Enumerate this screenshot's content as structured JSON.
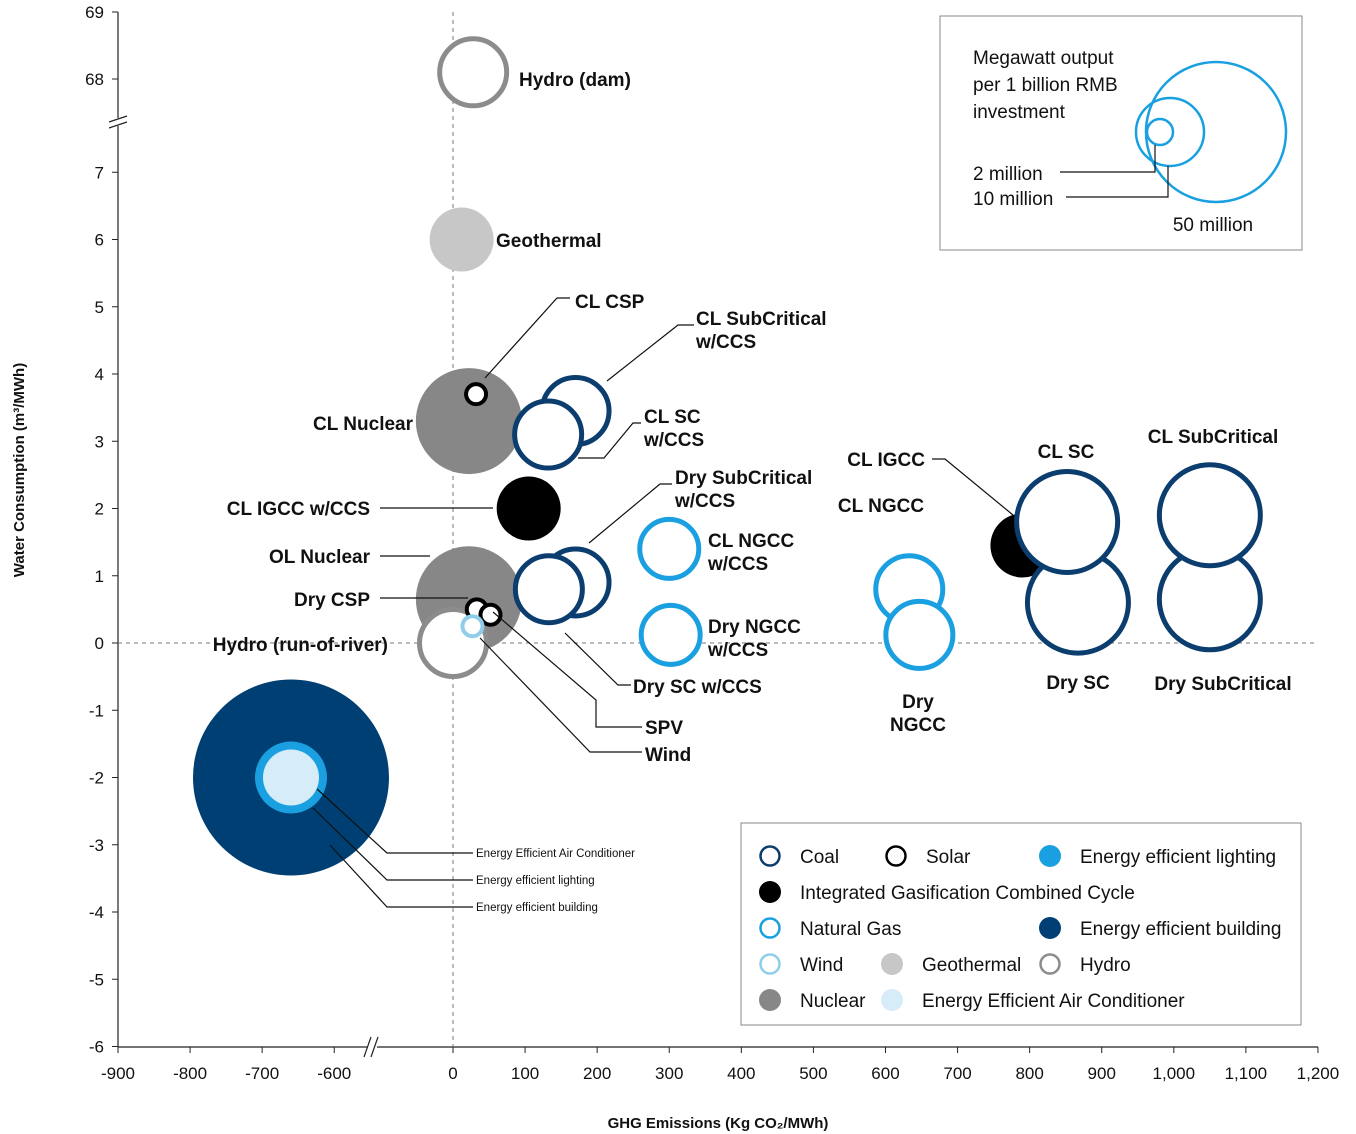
{
  "chart_data": {
    "type": "bubble",
    "title": "",
    "xlabel": "GHG Emissions (Kg CO₂/MWh)",
    "ylabel": "Water Consumption (m³/MWh)",
    "x_ticks": [
      "-900",
      "-800",
      "-700",
      "-600",
      "0",
      "100",
      "200",
      "300",
      "400",
      "500",
      "600",
      "700",
      "800",
      "900",
      "1,000",
      "1,100",
      "1,200"
    ],
    "y_ticks": [
      "-6",
      "-5",
      "-4",
      "-3",
      "-2",
      "-1",
      "0",
      "1",
      "2",
      "3",
      "4",
      "5",
      "6",
      "7",
      "68",
      "69"
    ],
    "x_axis_break": "between -550 and 0",
    "y_axis_break": "between 7.5 and 67.5",
    "colors": {
      "coal": "#0b3d6e",
      "solar": "#000000",
      "lighting": "#1aa0e0",
      "igcc": "#000000",
      "natural_gas": "#1aa0e0",
      "building": "#003f73",
      "wind": "#8fcdea",
      "geothermal": "#c7c7c7",
      "hydro": "#8c8c8c",
      "nuclear": "#878787",
      "air_conditioner": "#d6ecf8"
    },
    "points": [
      {
        "label": "Hydro (dam)",
        "category": "Hydro",
        "x": 28,
        "y": 68.1,
        "size": "medium"
      },
      {
        "label": "Geothermal",
        "category": "Geothermal",
        "x": 12,
        "y": 6.0,
        "size": "small"
      },
      {
        "label": "CL CSP",
        "category": "Solar",
        "x": 32,
        "y": 3.7,
        "size": "very small"
      },
      {
        "label": "CL SubCritical w/CCS",
        "category": "Coal",
        "x": 170,
        "y": 3.45,
        "size": "medium"
      },
      {
        "label": "CL Nuclear",
        "category": "Nuclear",
        "x": 22,
        "y": 3.3,
        "size": "large"
      },
      {
        "label": "CL SC w/CCS",
        "category": "Coal",
        "x": 132,
        "y": 3.1,
        "size": "medium"
      },
      {
        "label": "CL IGCC w/CCS",
        "category": "Integrated Gasification Combined Cycle",
        "x": 105,
        "y": 2.0,
        "size": "small"
      },
      {
        "label": "Dry SubCritical w/CCS",
        "category": "Coal",
        "x": 170,
        "y": 0.9,
        "size": "medium"
      },
      {
        "label": "OL Nuclear",
        "category": "Nuclear",
        "x": 22,
        "y": 0.65,
        "size": "large"
      },
      {
        "label": "Dry SC w/CCS",
        "category": "Coal",
        "x": 133,
        "y": 0.8,
        "size": "medium"
      },
      {
        "label": "Dry CSP",
        "category": "Solar",
        "x": 33,
        "y": 0.5,
        "size": "very small"
      },
      {
        "label": "SPV",
        "category": "Solar",
        "x": 52,
        "y": 0.42,
        "size": "very small"
      },
      {
        "label": "Wind",
        "category": "Wind",
        "x": 27,
        "y": 0.25,
        "size": "very small"
      },
      {
        "label": "Hydro (run-of-river)",
        "category": "Hydro",
        "x": 0,
        "y": 0.0,
        "size": "medium"
      },
      {
        "label": "CL NGCC w/CCS",
        "category": "Natural Gas",
        "x": 300,
        "y": 1.4,
        "size": "small"
      },
      {
        "label": "Dry NGCC w/CCS",
        "category": "Natural Gas",
        "x": 302,
        "y": 0.12,
        "size": "small"
      },
      {
        "label": "CL NGCC",
        "category": "Natural Gas",
        "x": 633,
        "y": 0.8,
        "size": "medium"
      },
      {
        "label": "Dry NGCC",
        "category": "Natural Gas",
        "x": 647,
        "y": 0.12,
        "size": "medium"
      },
      {
        "label": "CL IGCC",
        "category": "Integrated Gasification Combined Cycle",
        "x": 790,
        "y": 1.45,
        "size": "small"
      },
      {
        "label": "CL SC",
        "category": "Coal",
        "x": 852,
        "y": 1.8,
        "size": "large"
      },
      {
        "label": "Dry SC",
        "category": "Coal",
        "x": 867,
        "y": 0.6,
        "size": "large"
      },
      {
        "label": "CL SubCritical",
        "category": "Coal",
        "x": 1050,
        "y": 1.9,
        "size": "large"
      },
      {
        "label": "Dry SubCritical",
        "category": "Coal",
        "x": 1050,
        "y": 0.65,
        "size": "large"
      },
      {
        "label": "Energy efficient building",
        "category": "Energy efficient building",
        "x": -660,
        "y": -2.0,
        "size": "very large"
      },
      {
        "label": "Energy efficient lighting",
        "category": "Energy efficient lighting",
        "x": -660,
        "y": -2.0,
        "size": "small"
      },
      {
        "label": "Energy Efficient Air Conditioner",
        "category": "Energy Efficient Air Conditioner",
        "x": -660,
        "y": -2.0,
        "size": "small"
      }
    ],
    "size_legend": {
      "title_lines": [
        "Megawatt output",
        "per 1 billion RMB",
        "investment"
      ],
      "items": [
        "2 million",
        "10 million",
        "50 million"
      ]
    },
    "legend": {
      "placement": "bottom-right",
      "items": [
        {
          "label": "Coal",
          "style": "ring",
          "color": "#0b3d6e"
        },
        {
          "label": "Solar",
          "style": "ring",
          "color": "#000000"
        },
        {
          "label": "Energy efficient lighting",
          "style": "filled",
          "color": "#1aa0e0"
        },
        {
          "label": "Integrated Gasification Combined Cycle",
          "style": "filled",
          "color": "#000000"
        },
        {
          "label": "Natural Gas",
          "style": "ring",
          "color": "#1aa0e0"
        },
        {
          "label": "Energy efficient building",
          "style": "filled",
          "color": "#003f73"
        },
        {
          "label": "Wind",
          "style": "ring",
          "color": "#8fcdea"
        },
        {
          "label": "Geothermal",
          "style": "filled",
          "color": "#c7c7c7"
        },
        {
          "label": "Hydro",
          "style": "ring",
          "color": "#8c8c8c"
        },
        {
          "label": "Nuclear",
          "style": "filled",
          "color": "#878787"
        },
        {
          "label": "Energy Efficient Air Conditioner",
          "style": "filled",
          "color": "#d6ecf8"
        }
      ]
    },
    "grid": false,
    "reference_lines": [
      "x = 0 (dashed)",
      "y = 0 (dashed)"
    ]
  }
}
